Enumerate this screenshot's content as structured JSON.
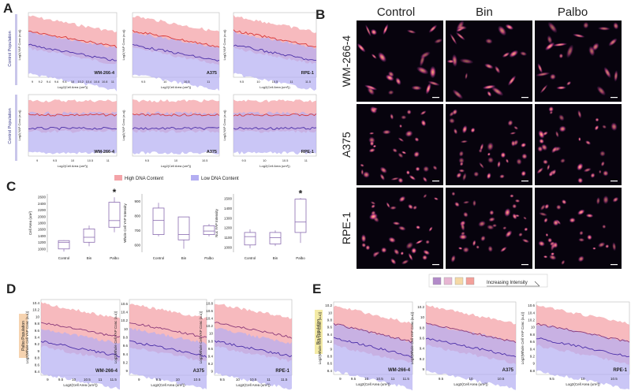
{
  "panel_labels": [
    "A",
    "B",
    "C",
    "D",
    "E"
  ],
  "colors": {
    "high": "#f4a3a8",
    "low": "#b3aef2",
    "high_line": "#d93a3a",
    "low_line": "#4b2fa8",
    "mean_line": "#8a3a7a"
  },
  "panelA": {
    "row_labels": [
      "Control Population",
      "Control Population"
    ],
    "xlabel": "Log2(Cell Area (um²))",
    "ylabel": "Log2(YAP Conc (a.u))",
    "plots": [
      {
        "cell": "WM-266-4",
        "xticks": [
          "9",
          "9.2",
          "9.4",
          "9.6",
          "9.8",
          "10",
          "10.2",
          "10.4",
          "10.6",
          "10.8",
          "11"
        ]
      },
      {
        "cell": "A375",
        "xticks": [
          "9.5",
          "10",
          "10.5",
          "11"
        ]
      },
      {
        "cell": "RPE-1",
        "xticks": [
          "9.5",
          "10",
          "10.5",
          "11",
          "11.5"
        ]
      },
      {
        "cell": "WM-266-4",
        "xticks": [
          "9",
          "9.5",
          "10",
          "10.5",
          "11"
        ]
      },
      {
        "cell": "A375",
        "xticks": [
          "9.5",
          "10",
          "10.5"
        ]
      },
      {
        "cell": "RPE-1",
        "xticks": [
          "9.5",
          "10",
          "10.5",
          "11"
        ]
      }
    ],
    "legend": [
      "High DNA Content",
      "Low DNA Content"
    ]
  },
  "panelB": {
    "columns": [
      "Control",
      "Bin",
      "Palbo"
    ],
    "rows": [
      "WM-266-4",
      "A375",
      "RPE-1"
    ]
  },
  "panelC": {
    "xticks": [
      "Control",
      "Bin",
      "Palbo"
    ],
    "star": "*",
    "chart_data": [
      {
        "type": "box",
        "ylabel": "Cell Area (um²)",
        "yticks": [
          "1000",
          "1200",
          "1400",
          "1600",
          "1800",
          "2000",
          "2200",
          "2400",
          "2600"
        ],
        "ylim": [
          900,
          2650
        ],
        "boxes": [
          {
            "q1": 1000,
            "q3": 1250,
            "min": 920,
            "max": 1260,
            "med": 1200
          },
          {
            "q1": 1200,
            "q3": 1600,
            "min": 1080,
            "max": 1700,
            "med": 1350
          },
          {
            "q1": 1650,
            "q3": 2400,
            "min": 1500,
            "max": 2550,
            "med": 1850
          }
        ],
        "significant": "Palbo"
      },
      {
        "type": "box",
        "ylabel": "Whole Cell YAP Intensity",
        "yticks": [
          "600",
          "700",
          "800",
          "900"
        ],
        "ylim": [
          600,
          930
        ],
        "boxes": [
          {
            "q1": 700,
            "q3": 850,
            "min": 690,
            "max": 880,
            "med": 780
          },
          {
            "q1": 670,
            "q3": 800,
            "min": 620,
            "max": 800,
            "med": 700
          },
          {
            "q1": 700,
            "q3": 750,
            "min": 690,
            "max": 760,
            "med": 720
          }
        ]
      },
      {
        "type": "box",
        "ylabel": "Nuc YAP Intensity",
        "yticks": [
          "1000",
          "1100",
          "1200",
          "1300",
          "1400",
          "1500"
        ],
        "ylim": [
          960,
          1520
        ],
        "boxes": [
          {
            "q1": 1030,
            "q3": 1150,
            "min": 1000,
            "max": 1180,
            "med": 1110
          },
          {
            "q1": 1040,
            "q3": 1150,
            "min": 1020,
            "max": 1170,
            "med": 1100
          },
          {
            "q1": 1150,
            "q3": 1470,
            "min": 1050,
            "max": 1480,
            "med": 1250
          }
        ],
        "significant": "Palbo"
      }
    ]
  },
  "intensity_legend": "Increasing Intensity",
  "panelD": {
    "row_label": "Palbo Population",
    "ylabel": "Log2(Whole Cell YAP Conc (a.u))",
    "xlabel": "Log2(Cell Area (um²))",
    "plots": [
      {
        "cell": "WM-266-4",
        "xticks": [
          "9",
          "9.5",
          "10",
          "10.5",
          "11",
          "11.5"
        ],
        "yticks": [
          "10.4",
          "10.2",
          "10",
          "9.8",
          "9.6",
          "9.4",
          "9.2",
          "9",
          "8.8",
          "8.6",
          "8.4"
        ]
      },
      {
        "cell": "A375",
        "xticks": [
          "9",
          "9.5",
          "10",
          "10.5"
        ],
        "yticks": [
          "10.6",
          "10.4",
          "10.2",
          "10",
          "9.8",
          "9.6",
          "9.4",
          "9.2",
          "9"
        ]
      },
      {
        "cell": "RPE-1",
        "xticks": [
          "9.5",
          "10",
          "10.5",
          "11",
          "11.5"
        ],
        "yticks": [
          "10.8",
          "10.6",
          "10.4",
          "10.2",
          "10",
          "9.8",
          "9.6",
          "9.4",
          "9.2",
          "9"
        ]
      }
    ]
  },
  "panelE": {
    "row_label": "Bin Population",
    "ylabel": "Log2(Whole Cell YAP Conc (a.u))",
    "xlabel": "Log2(Cell Area (um²))",
    "plots": [
      {
        "cell": "WM-266-4",
        "xticks": [
          "9",
          "9.5",
          "10",
          "10.5",
          "11",
          "11.5"
        ],
        "yticks": [
          "10.2",
          "10",
          "9.8",
          "9.6",
          "9.4",
          "9.2",
          "9",
          "8.8",
          "8.6",
          "8.4"
        ]
      },
      {
        "cell": "A375",
        "xticks": [
          "9.5",
          "10",
          "10.5"
        ],
        "yticks": [
          "10.2",
          "10",
          "9.8",
          "9.6",
          "9.4",
          "9.2",
          "9"
        ]
      },
      {
        "cell": "RPE-1",
        "xticks": [
          "9.5",
          "10",
          "10.5"
        ],
        "yticks": [
          "10.6",
          "10.4",
          "10.2",
          "10",
          "9.8",
          "9.6",
          "9.4",
          "9.2",
          "9",
          "8.8"
        ]
      }
    ]
  }
}
